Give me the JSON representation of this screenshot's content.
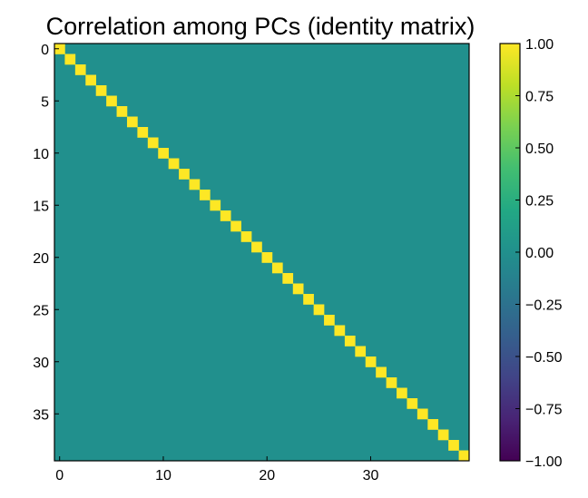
{
  "chart_data": {
    "type": "heatmap",
    "title": "Correlation among PCs (identity matrix)",
    "xlabel": "",
    "ylabel": "",
    "matrix": "identity",
    "size": 40,
    "diagonal_value": 1.0,
    "off_diagonal_value": 0.0,
    "x_range": [
      -0.5,
      39.5
    ],
    "y_range": [
      -0.5,
      39.5
    ],
    "y_axis_inverted": true,
    "x_ticks": [
      0,
      10,
      20,
      30
    ],
    "y_ticks": [
      0,
      5,
      10,
      15,
      20,
      25,
      30,
      35
    ],
    "colormap": "viridis",
    "colorbar": {
      "range": [
        -1.0,
        1.0
      ],
      "ticks": [
        1.0,
        0.75,
        0.5,
        0.25,
        0.0,
        -0.25,
        -0.5,
        -0.75,
        -1.0
      ],
      "tick_labels": [
        "1.00",
        "0.75",
        "0.50",
        "0.25",
        "0.00",
        "−0.25",
        "−0.50",
        "−0.75",
        "−1.00"
      ]
    },
    "colors": {
      "diagonal": "#fde725",
      "off_diagonal": "#21908d",
      "frame": "#000000"
    },
    "grid": false
  }
}
